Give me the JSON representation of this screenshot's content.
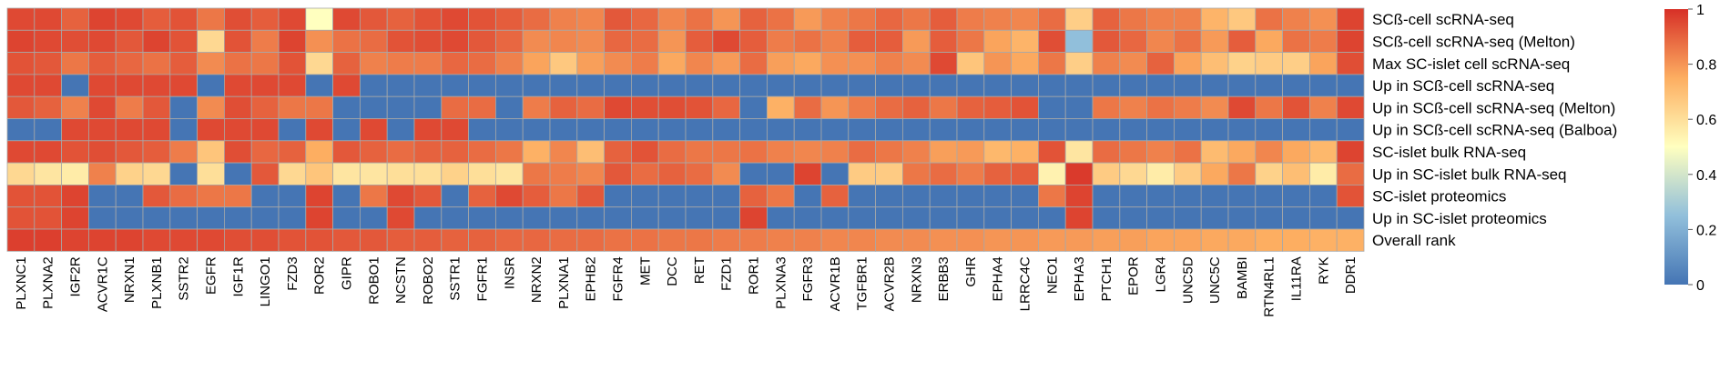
{
  "chart_data": {
    "type": "heatmap",
    "rows": [
      "SCß-cell scRNA-seq",
      "SCß-cell scRNA-seq (Melton)",
      "Max SC-islet cell scRNA-seq",
      "Up in SCß-cell scRNA-seq",
      "Up in SCß-cell scRNA-seq (Melton)",
      "Up in SCß-cell scRNA-seq (Balboa)",
      "SC-islet bulk RNA-seq",
      "Up in SC-islet bulk RNA-seq",
      "SC-islet proteomics",
      "Up in SC-islet proteomics",
      "Overall rank"
    ],
    "columns": [
      "PLXNC1",
      "PLXNA2",
      "IGF2R",
      "ACVR1C",
      "NRXN1",
      "PLXNB1",
      "SSTR2",
      "EGFR",
      "IGF1R",
      "LINGO1",
      "FZD3",
      "ROR2",
      "GIPR",
      "ROBO1",
      "NCSTN",
      "ROBO2",
      "SSTR1",
      "FGFR1",
      "INSR",
      "NRXN2",
      "PLXNA1",
      "EPHB2",
      "FGFR4",
      "MET",
      "DCC",
      "RET",
      "FZD1",
      "ROR1",
      "PLXNA3",
      "FGFR3",
      "ACVR1B",
      "TGFBR1",
      "ACVR2B",
      "NRXN3",
      "ERBB3",
      "GHR",
      "EPHA4",
      "LRRC4C",
      "NEO1",
      "EPHA3",
      "PTCH1",
      "EPOR",
      "LGR4",
      "UNC5D",
      "UNC5C",
      "BAMBI",
      "RTN4RL1",
      "IL11RA",
      "RYK",
      "DDR1"
    ],
    "values": [
      [
        0.95,
        0.95,
        0.9,
        0.96,
        0.95,
        0.91,
        0.93,
        0.86,
        0.94,
        0.91,
        0.95,
        0.5,
        0.95,
        0.92,
        0.9,
        0.93,
        0.95,
        0.93,
        0.91,
        0.88,
        0.84,
        0.83,
        0.92,
        0.89,
        0.83,
        0.87,
        0.8,
        0.9,
        0.87,
        0.79,
        0.84,
        0.86,
        0.89,
        0.86,
        0.91,
        0.85,
        0.84,
        0.83,
        0.88,
        0.65,
        0.9,
        0.86,
        0.84,
        0.84,
        0.73,
        0.67,
        0.87,
        0.84,
        0.81,
        0.96
      ],
      [
        0.96,
        0.95,
        0.94,
        0.95,
        0.92,
        0.96,
        0.93,
        0.62,
        0.93,
        0.85,
        0.96,
        0.81,
        0.87,
        0.88,
        0.93,
        0.94,
        0.95,
        0.92,
        0.89,
        0.82,
        0.83,
        0.82,
        0.89,
        0.88,
        0.8,
        0.91,
        0.95,
        0.91,
        0.85,
        0.87,
        0.84,
        0.91,
        0.91,
        0.79,
        0.91,
        0.86,
        0.77,
        0.73,
        0.94,
        0.25,
        0.92,
        0.89,
        0.83,
        0.87,
        0.79,
        0.91,
        0.76,
        0.87,
        0.85,
        0.96
      ],
      [
        0.93,
        0.92,
        0.86,
        0.91,
        0.89,
        0.87,
        0.91,
        0.82,
        0.87,
        0.86,
        0.93,
        0.62,
        0.9,
        0.84,
        0.85,
        0.85,
        0.89,
        0.88,
        0.84,
        0.77,
        0.67,
        0.78,
        0.82,
        0.85,
        0.76,
        0.83,
        0.79,
        0.88,
        0.78,
        0.76,
        0.81,
        0.81,
        0.84,
        0.82,
        0.95,
        0.68,
        0.8,
        0.76,
        0.86,
        0.65,
        0.84,
        0.82,
        0.9,
        0.77,
        0.7,
        0.64,
        0.66,
        0.65,
        0.77,
        0.94
      ],
      [
        0.95,
        0.95,
        0.0,
        0.95,
        0.95,
        0.95,
        0.95,
        0.0,
        0.95,
        0.95,
        0.95,
        0.0,
        0.95,
        0.0,
        0.0,
        0.0,
        0.0,
        0.0,
        0.0,
        0.0,
        0.0,
        0.0,
        0.0,
        0.0,
        0.0,
        0.0,
        0.0,
        0.0,
        0.0,
        0.0,
        0.0,
        0.0,
        0.0,
        0.0,
        0.0,
        0.0,
        0.0,
        0.0,
        0.0,
        0.0,
        0.0,
        0.0,
        0.0,
        0.0,
        0.0,
        0.0,
        0.0,
        0.0,
        0.0,
        0.0
      ],
      [
        0.92,
        0.9,
        0.84,
        0.95,
        0.85,
        0.92,
        0.0,
        0.82,
        0.94,
        0.9,
        0.86,
        0.86,
        0.0,
        0.0,
        0.0,
        0.0,
        0.88,
        0.88,
        0.0,
        0.85,
        0.9,
        0.88,
        0.95,
        0.94,
        0.94,
        0.93,
        0.89,
        0.0,
        0.74,
        0.88,
        0.8,
        0.85,
        0.88,
        0.9,
        0.86,
        0.9,
        0.91,
        0.93,
        0.0,
        0.0,
        0.86,
        0.84,
        0.87,
        0.85,
        0.82,
        0.95,
        0.86,
        0.93,
        0.84,
        0.95
      ],
      [
        0.0,
        0.0,
        0.95,
        0.95,
        0.95,
        0.95,
        0.0,
        0.95,
        0.95,
        0.95,
        0.0,
        0.95,
        0.0,
        0.95,
        0.0,
        0.95,
        0.95,
        0.0,
        0.0,
        0.0,
        0.0,
        0.0,
        0.0,
        0.0,
        0.0,
        0.0,
        0.0,
        0.0,
        0.0,
        0.0,
        0.0,
        0.0,
        0.0,
        0.0,
        0.0,
        0.0,
        0.0,
        0.0,
        0.0,
        0.0,
        0.0,
        0.0,
        0.0,
        0.0,
        0.0,
        0.0,
        0.0,
        0.0,
        0.0,
        0.0
      ],
      [
        0.95,
        0.95,
        0.93,
        0.94,
        0.92,
        0.91,
        0.85,
        0.68,
        0.94,
        0.89,
        0.9,
        0.75,
        0.92,
        0.9,
        0.88,
        0.9,
        0.9,
        0.88,
        0.86,
        0.74,
        0.83,
        0.7,
        0.9,
        0.93,
        0.88,
        0.86,
        0.86,
        0.87,
        0.84,
        0.83,
        0.84,
        0.88,
        0.86,
        0.84,
        0.78,
        0.79,
        0.72,
        0.74,
        0.93,
        0.58,
        0.88,
        0.86,
        0.84,
        0.87,
        0.71,
        0.76,
        0.83,
        0.76,
        0.72,
        0.96
      ],
      [
        0.62,
        0.58,
        0.56,
        0.84,
        0.64,
        0.62,
        0.0,
        0.6,
        0.0,
        0.92,
        0.62,
        0.68,
        0.58,
        0.58,
        0.6,
        0.6,
        0.64,
        0.6,
        0.58,
        0.86,
        0.85,
        0.83,
        0.92,
        0.88,
        0.9,
        0.88,
        0.82,
        0.0,
        0.0,
        0.96,
        0.0,
        0.66,
        0.66,
        0.86,
        0.88,
        0.85,
        0.9,
        0.91,
        0.54,
        0.98,
        0.66,
        0.62,
        0.56,
        0.66,
        0.76,
        0.86,
        0.64,
        0.7,
        0.56,
        0.88
      ],
      [
        0.93,
        0.93,
        0.96,
        0.0,
        0.0,
        0.92,
        0.88,
        0.86,
        0.86,
        0.0,
        0.0,
        0.96,
        0.0,
        0.86,
        0.95,
        0.92,
        0.0,
        0.9,
        0.95,
        0.91,
        0.86,
        0.92,
        0.0,
        0.0,
        0.0,
        0.0,
        0.0,
        0.9,
        0.86,
        0.0,
        0.9,
        0.0,
        0.0,
        0.0,
        0.0,
        0.0,
        0.0,
        0.0,
        0.86,
        0.96,
        0.0,
        0.0,
        0.0,
        0.0,
        0.0,
        0.0,
        0.0,
        0.0,
        0.0,
        0.93
      ],
      [
        0.93,
        0.93,
        0.96,
        0.0,
        0.0,
        0.0,
        0.0,
        0.0,
        0.0,
        0.0,
        0.0,
        0.96,
        0.0,
        0.0,
        0.95,
        0.0,
        0.0,
        0.0,
        0.0,
        0.0,
        0.0,
        0.0,
        0.0,
        0.0,
        0.0,
        0.0,
        0.0,
        0.96,
        0.0,
        0.0,
        0.0,
        0.0,
        0.0,
        0.0,
        0.0,
        0.0,
        0.0,
        0.0,
        0.0,
        0.96,
        0.0,
        0.0,
        0.0,
        0.0,
        0.0,
        0.0,
        0.0,
        0.0,
        0.0,
        0.0
      ],
      [
        0.97,
        0.97,
        0.96,
        0.96,
        0.96,
        0.95,
        0.95,
        0.95,
        0.94,
        0.94,
        0.93,
        0.93,
        0.92,
        0.92,
        0.91,
        0.91,
        0.9,
        0.9,
        0.89,
        0.89,
        0.88,
        0.88,
        0.87,
        0.87,
        0.86,
        0.86,
        0.85,
        0.85,
        0.84,
        0.84,
        0.83,
        0.83,
        0.82,
        0.82,
        0.81,
        0.81,
        0.8,
        0.8,
        0.79,
        0.79,
        0.78,
        0.78,
        0.77,
        0.77,
        0.76,
        0.76,
        0.75,
        0.75,
        0.74,
        0.74
      ]
    ],
    "colorbar": {
      "ticks": [
        0,
        0.2,
        0.4,
        0.6,
        0.8,
        1
      ],
      "tick_labels": [
        "0",
        "0.2",
        "0.4",
        "0.6",
        "0.8",
        "1"
      ]
    },
    "colors": {
      "low": "#4575b4",
      "mid_low": "#91bfdb",
      "mid": "#ffffbf",
      "mid_high": "#fdae61",
      "high": "#d73027",
      "grid_line": "#a8a8a8"
    },
    "legend": "right",
    "xlabel": "",
    "ylabel": ""
  }
}
